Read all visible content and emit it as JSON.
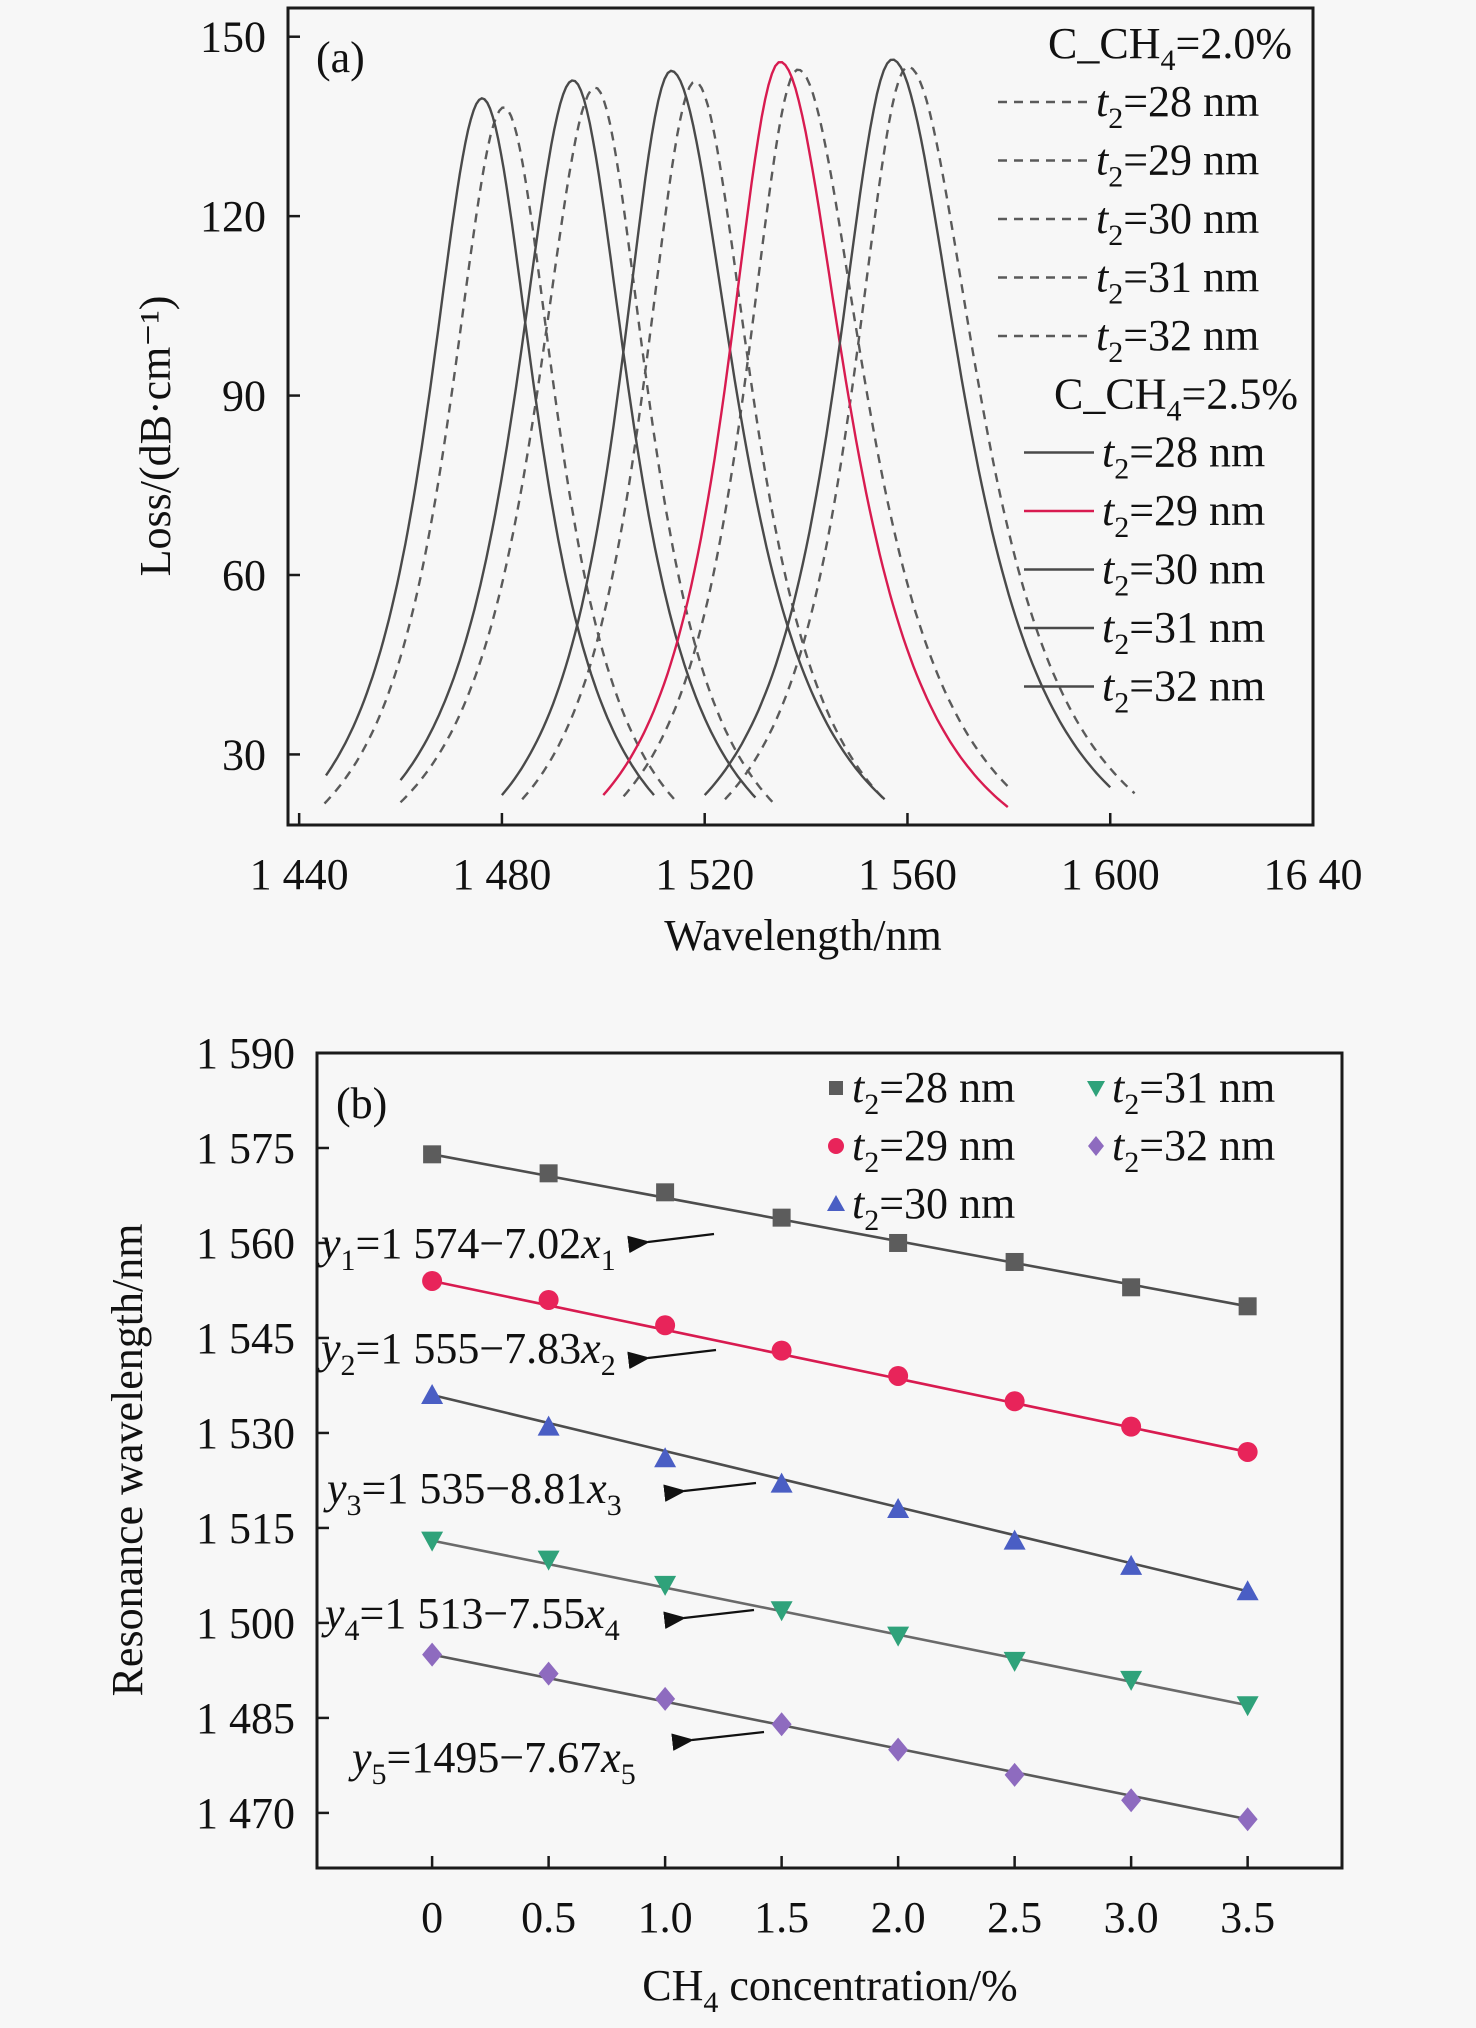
{
  "chart_data": [
    {
      "panel": "(a)",
      "type": "line",
      "title": "",
      "xlabel": "Wavelength/nm",
      "ylabel": "Loss/(dB·cm⁻¹)",
      "xlim": [
        1437.8,
        1640
      ],
      "ylim": [
        18.2,
        154.8
      ],
      "xticks": [
        1440,
        1480,
        1520,
        1560,
        1600,
        1640
      ],
      "xtick_labels": [
        "1 440",
        "1 480",
        "1 520",
        "1 560",
        "1 600",
        "16 40"
      ],
      "yticks": [
        30,
        60,
        90,
        120,
        150
      ],
      "ytick_labels": [
        "30",
        "60",
        "90",
        "120",
        "150"
      ],
      "grid": false,
      "legend_position": "top-right",
      "legend_groups": [
        {
          "title": "C_CH",
          "title_sub": "4",
          "title_tail": "=2.0%",
          "style": "dashed",
          "entries": [
            {
              "label_pre": "t",
              "label_sub": "2",
              "label_tail": "=28 nm",
              "color": "#5a5a5a"
            },
            {
              "label_pre": "t",
              "label_sub": "2",
              "label_tail": "=29 nm",
              "color": "#5a5a5a"
            },
            {
              "label_pre": "t",
              "label_sub": "2",
              "label_tail": "=30 nm",
              "color": "#5a5a5a"
            },
            {
              "label_pre": "t",
              "label_sub": "2",
              "label_tail": "=31 nm",
              "color": "#5a5a5a"
            },
            {
              "label_pre": "t",
              "label_sub": "2",
              "label_tail": "=32 nm",
              "color": "#5a5a5a"
            }
          ]
        },
        {
          "title": "C_CH",
          "title_sub": "4",
          "title_tail": "=2.5%",
          "style": "solid",
          "entries": [
            {
              "label_pre": "t",
              "label_sub": "2",
              "label_tail": "=28 nm",
              "color": "#4a4a4a"
            },
            {
              "label_pre": "t",
              "label_sub": "2",
              "label_tail": "=29 nm",
              "color": "#d81b50"
            },
            {
              "label_pre": "t",
              "label_sub": "2",
              "label_tail": "=30 nm",
              "color": "#4a4a4a"
            },
            {
              "label_pre": "t",
              "label_sub": "2",
              "label_tail": "=31 nm",
              "color": "#4a4a4a"
            },
            {
              "label_pre": "t",
              "label_sub": "2",
              "label_tail": "=32 nm",
              "color": "#4a4a4a"
            }
          ]
        }
      ],
      "series": [
        {
          "name": "C_CH4=2.0%, t2=32 nm",
          "style": "dashed",
          "color": "#5a5a5a",
          "peak_x": 1480.4,
          "peak_y": 138.2,
          "x_start": 1445,
          "y_start": 21.8,
          "x_end": 1514,
          "y_end": 22.5
        },
        {
          "name": "C_CH4=2.0%, t2=31 nm",
          "style": "dashed",
          "color": "#5a5a5a",
          "peak_x": 1498.4,
          "peak_y": 141.5,
          "x_start": 1460,
          "y_start": 22,
          "x_end": 1534,
          "y_end": 21.5
        },
        {
          "name": "C_CH4=2.0%, t2=30 nm",
          "style": "dashed",
          "color": "#5a5a5a",
          "peak_x": 1518.1,
          "peak_y": 142.5,
          "x_start": 1484,
          "y_start": 22.5,
          "x_end": 1556,
          "y_end": 22
        },
        {
          "name": "C_CH4=2.0%, t2=29 nm",
          "style": "dashed",
          "color": "#5a5a5a",
          "peak_x": 1538.4,
          "peak_y": 144.5,
          "x_start": 1504,
          "y_start": 23,
          "x_end": 1580,
          "y_end": 24.5
        },
        {
          "name": "C_CH4=2.0%, t2=28 nm",
          "style": "dashed",
          "color": "#5a5a5a",
          "peak_x": 1560.1,
          "peak_y": 145.0,
          "x_start": 1524,
          "y_start": 22.5,
          "x_end": 1604.8,
          "y_end": 23.5
        },
        {
          "name": "C_CH4=2.5%, t2=32 nm",
          "style": "solid",
          "color": "#4a4a4a",
          "peak_x": 1476.1,
          "peak_y": 139.7,
          "x_start": 1445.3,
          "y_start": 26.5,
          "x_end": 1510,
          "y_end": 23.2
        },
        {
          "name": "C_CH4=2.5%, t2=31 nm",
          "style": "solid",
          "color": "#4a4a4a",
          "peak_x": 1494.0,
          "peak_y": 142.7,
          "x_start": 1460,
          "y_start": 25.7,
          "x_end": 1530,
          "y_end": 22.8
        },
        {
          "name": "C_CH4=2.5%, t2=30 nm",
          "style": "solid",
          "color": "#4a4a4a",
          "peak_x": 1513.4,
          "peak_y": 144.3,
          "x_start": 1480,
          "y_start": 23.2,
          "x_end": 1555.5,
          "y_end": 22.5
        },
        {
          "name": "C_CH4=2.5%, t2=29 nm",
          "style": "solid",
          "color": "#d81b50",
          "peak_x": 1534.9,
          "peak_y": 145.8,
          "x_start": 1500,
          "y_start": 23.2,
          "x_end": 1579.8,
          "y_end": 21.2
        },
        {
          "name": "C_CH4=2.5%, t2=28 nm",
          "style": "solid",
          "color": "#4a4a4a",
          "peak_x": 1557.0,
          "peak_y": 146.2,
          "x_start": 1520,
          "y_start": 23.2,
          "x_end": 1600,
          "y_end": 24.5
        }
      ]
    },
    {
      "panel": "(b)",
      "type": "scatter",
      "title": "",
      "xlabel": "CH",
      "xlabel_sub": "4",
      "xlabel_tail": " concentration/%",
      "ylabel": "Resonance wavelength/nm",
      "xlim": [
        -0.494,
        3.905
      ],
      "ylim": [
        1461.3,
        1590
      ],
      "xticks": [
        0,
        0.5,
        1.0,
        1.5,
        2.0,
        2.5,
        3.0,
        3.5
      ],
      "xtick_labels": [
        "0",
        "0.5",
        "1.0",
        "1.5",
        "2.0",
        "2.5",
        "3.0",
        "3.5"
      ],
      "yticks": [
        1470,
        1485,
        1500,
        1515,
        1530,
        1545,
        1560,
        1575,
        1590
      ],
      "ytick_labels": [
        "1 470",
        "1 485",
        "1 500",
        "1 515",
        "1 530",
        "1 545",
        "1 560",
        "1 575",
        "1 590"
      ],
      "grid": false,
      "legend_position": "top-right",
      "x": [
        0,
        0.5,
        1.0,
        1.5,
        2.0,
        2.5,
        3.0,
        3.5
      ],
      "series": [
        {
          "name": "t2=28 nm",
          "label_pre": "t",
          "label_sub": "2",
          "label_tail": "=28 nm",
          "marker": "square",
          "color": "#5c5c5c",
          "line_color": "#4d4d4d",
          "values": [
            1574,
            1571,
            1568,
            1564,
            1560,
            1557,
            1553,
            1550
          ],
          "fit": {
            "pre": "y",
            "sub": "1",
            "text": "=1 574−7.02",
            "xvar": "x",
            "xsub": "1"
          }
        },
        {
          "name": "t2=29 nm",
          "label_pre": "t",
          "label_sub": "2",
          "label_tail": "=29 nm",
          "marker": "circle",
          "color": "#e8245a",
          "line_color": "#d81b50",
          "values": [
            1554,
            1551,
            1547,
            1543,
            1539,
            1535,
            1531,
            1527
          ],
          "fit": {
            "pre": "y",
            "sub": "2",
            "text": "=1 555−7.83",
            "xvar": "x",
            "xsub": "2"
          }
        },
        {
          "name": "t2=30 nm",
          "label_pre": "t",
          "label_sub": "2",
          "label_tail": "=30 nm",
          "marker": "triangle-up",
          "color": "#4a5ec4",
          "line_color": "#4d4d4d",
          "values": [
            1536,
            1531,
            1526,
            1522,
            1518,
            1513,
            1509,
            1505
          ],
          "fit": {
            "pre": "y",
            "sub": "3",
            "text": "=1 535−8.81",
            "xvar": "x",
            "xsub": "3"
          }
        },
        {
          "name": "t2=31 nm",
          "label_pre": "t",
          "label_sub": "2",
          "label_tail": "=31 nm",
          "marker": "triangle-down",
          "color": "#2fa27a",
          "line_color": "#6a6a6a",
          "values": [
            1513,
            1510,
            1506,
            1502,
            1498,
            1494,
            1491,
            1487
          ],
          "fit": {
            "pre": "y",
            "sub": "4",
            "text": "=1 513−7.55",
            "xvar": "x",
            "xsub": "4"
          }
        },
        {
          "name": "t2=32 nm",
          "label_pre": "t",
          "label_sub": "2",
          "label_tail": "=32 nm",
          "marker": "diamond",
          "color": "#8e6bbf",
          "line_color": "#5a5a5a",
          "values": [
            1495,
            1492,
            1488,
            1484,
            1480,
            1476,
            1472,
            1469
          ],
          "fit": {
            "pre": "y",
            "sub": "5",
            "text": "=1495−7.67",
            "xvar": "x",
            "xsub": "5"
          }
        }
      ]
    }
  ]
}
